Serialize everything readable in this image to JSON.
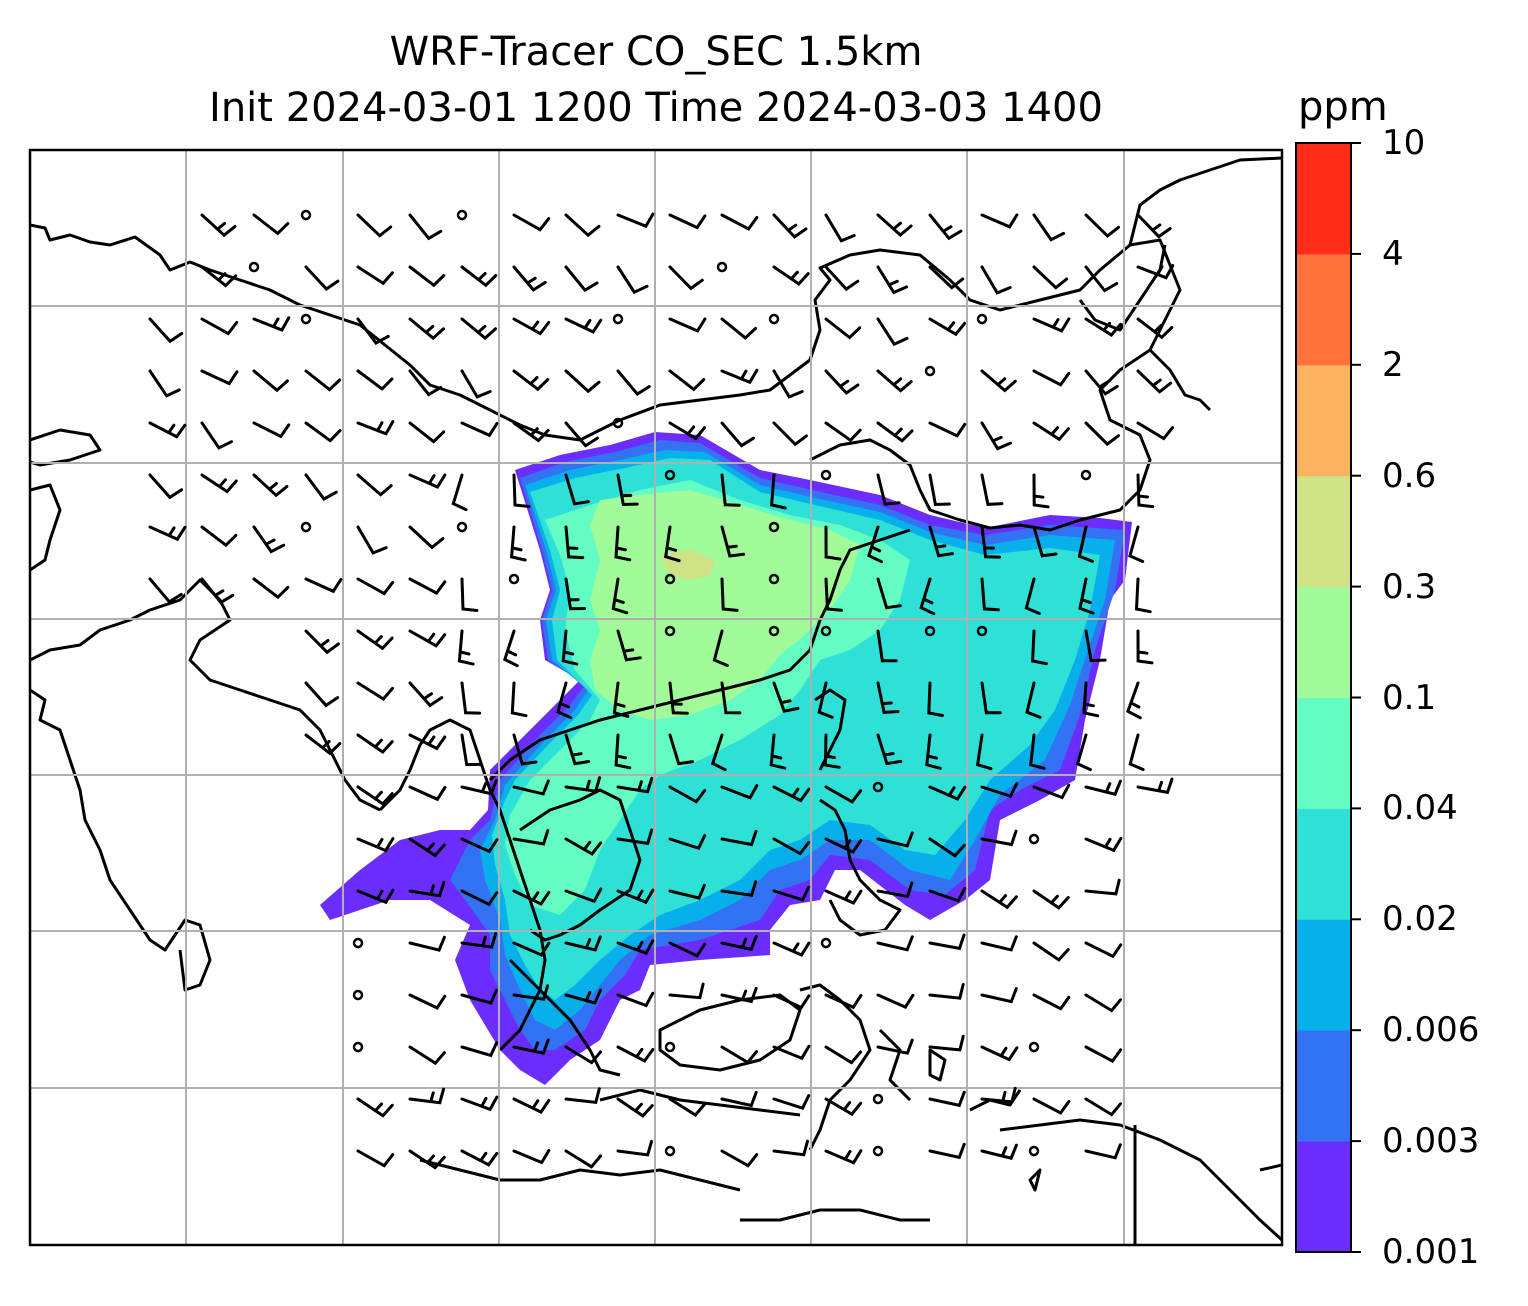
{
  "title": {
    "line1": "WRF-Tracer CO_SEC 1.5km",
    "line2": "Init 2024-03-01 1200 Time 2024-03-03 1400"
  },
  "colorbar": {
    "unit": "ppm",
    "levels": [
      "0.001",
      "0.003",
      "0.006",
      "0.02",
      "0.04",
      "0.1",
      "0.3",
      "0.6",
      "2",
      "4",
      "10"
    ],
    "colors": [
      "#6a2dfb",
      "#3472f4",
      "#07b0ea",
      "#2fe0d7",
      "#63fcc2",
      "#a0fb98",
      "#cfe286",
      "#fcb15f",
      "#ff723a",
      "#ff2c18"
    ]
  },
  "map": {
    "region": "South and Southeast Asia",
    "field": "CO_SEC tracer concentration",
    "overlay": "wind barbs",
    "grid": true
  }
}
